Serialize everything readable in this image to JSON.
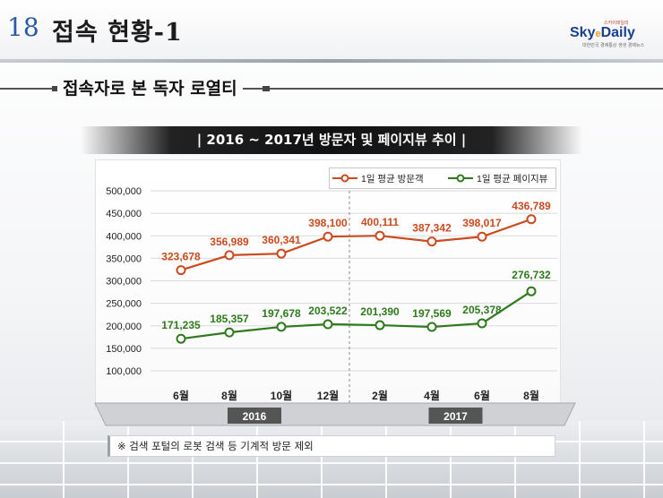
{
  "header": {
    "slide_number": "18",
    "title": "접속 현황-1",
    "logo": {
      "top": "스카이데일리",
      "main": "Sky",
      "accent": "e",
      "main2": "Daily",
      "sub": "대한민국 경제통상 생생 경제뉴스"
    }
  },
  "subtitle": "접속자로 본 독자 로열티",
  "chart_title": "| 2016 ~ 2017년 방문자 및 페이지뷰 추이 |",
  "note": "※ 검색 포털의 로봇 검색 등 기계적 방문 제외",
  "colors": {
    "visitors": "#cc4a1e",
    "pageviews": "#2d7a1c",
    "banner": "#1a1a1a",
    "year_bar": "#555555"
  },
  "chart_data": {
    "type": "line",
    "categories": [
      "6월",
      "8월",
      "10월",
      "12월",
      "2월",
      "4월",
      "6월",
      "8월"
    ],
    "years": [
      {
        "label": "2016",
        "span": [
          0,
          3
        ]
      },
      {
        "label": "2017",
        "span": [
          4,
          7
        ]
      }
    ],
    "series": [
      {
        "name": "1일 평균 방문객",
        "values": [
          323678,
          356989,
          360341,
          398100,
          400111,
          387342,
          398017,
          436789
        ],
        "labels": [
          "323,678",
          "356,989",
          "360,341",
          "398,100",
          "400,111",
          "387,342",
          "398,017",
          "436,789"
        ]
      },
      {
        "name": "1일 평균 페이지뷰",
        "values": [
          171235,
          185357,
          197678,
          203522,
          201390,
          197569,
          205378,
          276732
        ],
        "labels": [
          "171,235",
          "185,357",
          "197,678",
          "203,522",
          "201,390",
          "197,569",
          "205,378",
          "276,732"
        ]
      }
    ],
    "ylim": [
      100000,
      500000
    ],
    "yticks": [
      "500,000",
      "450,000",
      "400,000",
      "350,000",
      "300,000",
      "250,000",
      "200,000",
      "150,000",
      "100,000"
    ],
    "ytick_values": [
      500000,
      450000,
      400000,
      350000,
      300000,
      250000,
      200000,
      150000,
      100000
    ],
    "legend_position": "top-right",
    "grid": true
  }
}
